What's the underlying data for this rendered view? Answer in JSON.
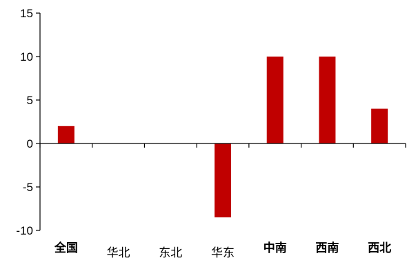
{
  "chart_data": {
    "type": "bar",
    "title": "",
    "xlabel": "",
    "ylabel": "",
    "categories": [
      "全国",
      "华北",
      "东北",
      "华东",
      "中南",
      "西南",
      "西北"
    ],
    "category_bold": [
      true,
      false,
      false,
      false,
      true,
      true,
      true
    ],
    "values": [
      2,
      0,
      0,
      -8.5,
      10,
      10,
      4
    ],
    "ylim": [
      -10,
      15
    ],
    "yticks": [
      -10,
      -5,
      0,
      5,
      10,
      15
    ],
    "ytick_labels": [
      "-10",
      "-5",
      "0",
      "5",
      "10",
      "15"
    ],
    "grid": false,
    "legend": "none",
    "bar_color": "#c00000",
    "axis_color": "#000000"
  }
}
